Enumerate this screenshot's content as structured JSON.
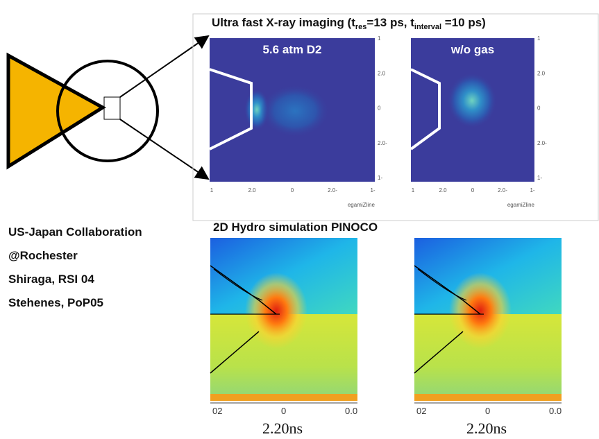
{
  "header": {
    "title_parts": [
      "Ultra fast X-ray imaging (t",
      "res",
      "=13 ps, t",
      "interval",
      " =10 ps)"
    ]
  },
  "xray_panels": [
    {
      "label": "5.6 atm D2",
      "x_ticks": [
        "1",
        "2.0",
        "0",
        "2.0-",
        "1-"
      ],
      "y_ticks": [
        "1",
        "2.0",
        "0",
        "2.0-",
        "1-"
      ],
      "axis_label": "egamiZline"
    },
    {
      "label": "w/o gas",
      "x_ticks": [
        "1",
        "2.0",
        "0",
        "2.0-",
        "1-"
      ],
      "y_ticks": [
        "1",
        "2.0",
        "0",
        "2.0-",
        "1-"
      ],
      "axis_label": "egamiZline"
    }
  ],
  "notes": [
    "US-Japan Collaboration",
    "@Rochester",
    "Shiraga, RSI 04",
    "Stehenes, PoP05"
  ],
  "simulation": {
    "title": "2D Hydro simulation PINOCO",
    "panels": [
      {
        "x_ticks": [
          "02",
          "0",
          "0.0"
        ],
        "time": "2.20ns"
      },
      {
        "x_ticks": [
          "02",
          "0",
          "0.0"
        ],
        "time": "2.20ns"
      }
    ]
  }
}
